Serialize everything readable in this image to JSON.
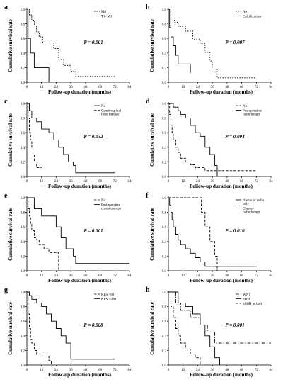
{
  "chart_data": [
    {
      "panel": "a",
      "type": "line",
      "xlabel": "Follow-up duration (months)",
      "ylabel": "Cumulative survival rate",
      "xlim": [
        0,
        84
      ],
      "ylim": [
        0,
        1
      ],
      "xticks": [
        "0",
        "12",
        "24",
        "36",
        "48",
        "60",
        "72",
        "84"
      ],
      "yticks": [
        "0.0",
        "0.2",
        "0.4",
        "0.6",
        "0.8",
        "1.0"
      ],
      "pvalue": "P = 0.001",
      "legend_position": "top-right",
      "series": [
        {
          "name": "M0",
          "dash": "dotted",
          "x": [
            0,
            2,
            4,
            6,
            8,
            10,
            13,
            18,
            22,
            26,
            30,
            36,
            40,
            72
          ],
          "y": [
            1,
            0.92,
            0.85,
            0.77,
            0.69,
            0.62,
            0.54,
            0.54,
            0.46,
            0.31,
            0.23,
            0.15,
            0.08,
            0.08
          ]
        },
        {
          "name": "T1+M1",
          "dash": "solid",
          "x": [
            0,
            1,
            3,
            6,
            18
          ],
          "y": [
            1,
            0.6,
            0.4,
            0.2,
            0
          ]
        }
      ]
    },
    {
      "panel": "b",
      "type": "line",
      "xlabel": "Follow-up duration (months)",
      "ylabel": "Cumulative survival rate",
      "xlim": [
        0,
        84
      ],
      "ylim": [
        0,
        1
      ],
      "xticks": [
        "0",
        "12",
        "24",
        "36",
        "48",
        "60",
        "72",
        "84"
      ],
      "yticks": [
        "0.0",
        "0.2",
        "0.4",
        "0.6",
        "0.8",
        "1.0"
      ],
      "pvalue": "P = 0.007",
      "legend_position": "top-right",
      "series": [
        {
          "name": "No",
          "dash": "dotted",
          "x": [
            0,
            2,
            5,
            8,
            14,
            20,
            26,
            30,
            34,
            36,
            40,
            72
          ],
          "y": [
            1,
            0.88,
            0.82,
            0.76,
            0.7,
            0.59,
            0.53,
            0.41,
            0.29,
            0.18,
            0.06,
            0.06
          ]
        },
        {
          "name": "Calcification",
          "dash": "solid",
          "x": [
            0,
            1,
            2,
            4,
            6,
            8,
            12,
            18
          ],
          "y": [
            1,
            0.75,
            0.62,
            0.5,
            0.37,
            0.25,
            0.25,
            0.13
          ]
        }
      ]
    },
    {
      "panel": "c",
      "type": "line",
      "xlabel": "Follow-up duration (months)",
      "ylabel": "Cumulative survival rate",
      "xlim": [
        0,
        84
      ],
      "ylim": [
        0,
        1
      ],
      "xticks": [
        "0",
        "12",
        "24",
        "36",
        "48",
        "60",
        "72",
        "84"
      ],
      "yticks": [
        "0.0",
        "0.2",
        "0.4",
        "0.6",
        "0.8",
        "1.0"
      ],
      "pvalue": "P = 0.032",
      "legend_position": "top-right",
      "series": [
        {
          "name": "No",
          "dash": "solid",
          "x": [
            0,
            2,
            4,
            8,
            12,
            18,
            22,
            26,
            30,
            34,
            38,
            40,
            72
          ],
          "y": [
            1,
            0.9,
            0.8,
            0.75,
            0.65,
            0.6,
            0.5,
            0.4,
            0.3,
            0.2,
            0.15,
            0.05,
            0.05
          ]
        },
        {
          "name": "Cerebrospinal fluid fistulae",
          "dash": "dashed",
          "x": [
            0,
            1,
            2,
            3,
            4,
            5,
            6,
            8,
            12
          ],
          "y": [
            1,
            0.8,
            0.6,
            0.5,
            0.4,
            0.3,
            0.2,
            0.12,
            0.12
          ]
        }
      ]
    },
    {
      "panel": "d",
      "type": "line",
      "xlabel": "Follow-up duration (months)",
      "ylabel": "Cumulative survival rate",
      "xlim": [
        0,
        84
      ],
      "ylim": [
        0,
        1
      ],
      "xticks": [
        "0",
        "12",
        "24",
        "36",
        "48",
        "60",
        "72",
        "84"
      ],
      "yticks": [
        "0.0",
        "0.2",
        "0.4",
        "0.6",
        "0.8",
        "1.0"
      ],
      "pvalue": "P = 0.004",
      "legend_position": "top-right",
      "series": [
        {
          "name": "No",
          "dash": "dashed",
          "x": [
            0,
            1,
            2,
            3,
            4,
            6,
            8,
            10,
            14,
            18,
            22,
            30,
            72
          ],
          "y": [
            1,
            0.85,
            0.7,
            0.6,
            0.5,
            0.4,
            0.33,
            0.25,
            0.2,
            0.16,
            0.12,
            0.08,
            0.08
          ]
        },
        {
          "name": "Postoperative radiotherapy",
          "dash": "solid",
          "x": [
            0,
            4,
            8,
            10,
            14,
            18,
            22,
            26,
            30,
            34,
            38,
            40
          ],
          "y": [
            1,
            0.95,
            0.9,
            0.85,
            0.8,
            0.7,
            0.6,
            0.55,
            0.4,
            0.3,
            0.15,
            0
          ]
        }
      ]
    },
    {
      "panel": "e",
      "type": "line",
      "xlabel": "Follow-up duration (months)",
      "ylabel": "Cumulative survival rate",
      "xlim": [
        0,
        84
      ],
      "ylim": [
        0,
        1
      ],
      "xticks": [
        "0",
        "12",
        "24",
        "36",
        "48",
        "60",
        "72",
        "84"
      ],
      "yticks": [
        "0.0",
        "0.2",
        "0.4",
        "0.6",
        "0.8",
        "1.0"
      ],
      "pvalue": "P = 0.001",
      "legend_position": "top-right",
      "series": [
        {
          "name": "No",
          "dash": "dashed",
          "x": [
            0,
            1,
            2,
            3,
            4,
            6,
            8,
            10,
            14,
            18,
            22,
            26
          ],
          "y": [
            1,
            0.85,
            0.75,
            0.65,
            0.55,
            0.45,
            0.42,
            0.36,
            0.3,
            0.25,
            0.25,
            0
          ]
        },
        {
          "name": "Postoperative chemotherapy",
          "dash": "solid",
          "x": [
            0,
            6,
            12,
            18,
            24,
            28,
            32,
            38,
            40,
            84
          ],
          "y": [
            1,
            0.85,
            0.75,
            0.75,
            0.6,
            0.45,
            0.3,
            0.2,
            0.1,
            0.1
          ]
        }
      ]
    },
    {
      "panel": "f",
      "type": "line",
      "xlabel": "Follow-up duration (months)",
      "ylabel": "Cumulative survival rate",
      "xlim": [
        0,
        84
      ],
      "ylim": [
        0,
        1
      ],
      "xticks": [
        "0",
        "12",
        "24",
        "36",
        "48",
        "60",
        "72",
        "84"
      ],
      "yticks": [
        "0.0",
        "0.2",
        "0.4",
        "0.6",
        "0.8",
        "1.0"
      ],
      "pvalue": "P = 0.010",
      "legend_position": "top-right",
      "series": [
        {
          "name": "chemo or radio only",
          "dash": "solid",
          "x": [
            0,
            1,
            2,
            3,
            4,
            6,
            8,
            10,
            14,
            18,
            22,
            26,
            30,
            72
          ],
          "y": [
            1,
            0.9,
            0.8,
            0.7,
            0.6,
            0.5,
            0.42,
            0.36,
            0.3,
            0.24,
            0.18,
            0.12,
            0.06,
            0.06
          ]
        },
        {
          "name": "Chemo+ radiotherapy",
          "dash": "dashed",
          "x": [
            0,
            24,
            27,
            30,
            34,
            38,
            40
          ],
          "y": [
            1,
            1,
            0.8,
            0.6,
            0.4,
            0.2,
            0
          ]
        }
      ]
    },
    {
      "panel": "g",
      "type": "line",
      "xlabel": "Follow-up duration (months)",
      "ylabel": "Cumulative survival rate",
      "xlim": [
        0,
        84
      ],
      "ylim": [
        0,
        1
      ],
      "xticks": [
        "0",
        "12",
        "24",
        "36",
        "48",
        "60",
        "72",
        "84"
      ],
      "yticks": [
        "0.0",
        "0.2",
        "0.4",
        "0.6",
        "0.8",
        "1.0"
      ],
      "pvalue": "P = 0.008",
      "legend_position": "top-right",
      "series": [
        {
          "name": "KPS <80",
          "dash": "dashed",
          "x": [
            0,
            1,
            2,
            3,
            4,
            6,
            8,
            12,
            18,
            20
          ],
          "y": [
            1,
            0.7,
            0.5,
            0.35,
            0.3,
            0.2,
            0.12,
            0.12,
            0.06,
            0
          ]
        },
        {
          "name": "KPS >=80",
          "dash": "solid",
          "x": [
            0,
            2,
            4,
            8,
            12,
            16,
            20,
            24,
            28,
            32,
            36,
            72
          ],
          "y": [
            1,
            0.95,
            0.9,
            0.85,
            0.8,
            0.7,
            0.6,
            0.5,
            0.4,
            0.3,
            0.08,
            0.08
          ]
        }
      ]
    },
    {
      "panel": "h",
      "type": "line",
      "xlabel": "Follow-up duration (months)",
      "ylabel": "Cumulative survival rate",
      "xlim": [
        0,
        84
      ],
      "ylim": [
        0,
        1
      ],
      "xticks": [
        "0",
        "12",
        "24",
        "36",
        "48",
        "60",
        "72",
        "84"
      ],
      "yticks": [
        "0.0",
        "0.2",
        "0.4",
        "0.6",
        "0.8",
        "1.0"
      ],
      "pvalue": "P = 0.001",
      "legend_position": "top-right",
      "series": [
        {
          "name": "WNT",
          "dash": "dashdot",
          "x": [
            0,
            6,
            10,
            18,
            26,
            32,
            38,
            84
          ],
          "y": [
            1,
            0.85,
            0.75,
            0.65,
            0.55,
            0.45,
            0.3,
            0.3
          ]
        },
        {
          "name": "SHH",
          "dash": "solid",
          "x": [
            0,
            8,
            14,
            20,
            26,
            30,
            34,
            38,
            42
          ],
          "y": [
            1,
            0.85,
            0.8,
            0.7,
            0.55,
            0.4,
            0.25,
            0.1,
            0
          ]
        },
        {
          "name": "nSHH or both",
          "dash": "dashed",
          "x": [
            0,
            2,
            4,
            6,
            8,
            10,
            14,
            18,
            22,
            26
          ],
          "y": [
            1,
            0.8,
            0.65,
            0.5,
            0.4,
            0.3,
            0.22,
            0.15,
            0.1,
            0
          ]
        }
      ]
    }
  ]
}
